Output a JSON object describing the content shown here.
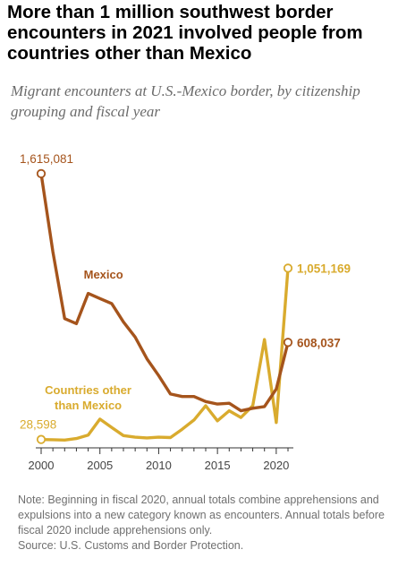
{
  "title": "More than 1 million southwest border encounters in 2021 involved people from countries other than Mexico",
  "subtitle": "Migrant encounters at U.S.-Mexico border, by citizenship grouping and fiscal year",
  "note": "Note: Beginning in fiscal 2020, annual totals combine apprehensions and expulsions into a new category known as encounters. Annual totals before fiscal 2020 include apprehensions only.",
  "source": "Source: U.S. Customs and Border Protection.",
  "colors": {
    "mexico": "#a5541c",
    "other": "#d9ab2e",
    "axis": "#333333",
    "tick_label": "#444444"
  },
  "chart_data": {
    "type": "line",
    "x": [
      2000,
      2001,
      2002,
      2003,
      2004,
      2005,
      2006,
      2007,
      2008,
      2009,
      2010,
      2011,
      2012,
      2013,
      2014,
      2015,
      2016,
      2017,
      2018,
      2019,
      2020,
      2021
    ],
    "xticks": [
      2000,
      2005,
      2010,
      2015,
      2020
    ],
    "xlim": [
      2000,
      2021
    ],
    "ylim": [
      0,
      1700000
    ],
    "series": [
      {
        "name": "Mexico",
        "label": "Mexico",
        "color": "#a5541c",
        "values": [
          1615081,
          1150000,
          750000,
          720000,
          900000,
          870000,
          840000,
          730000,
          640000,
          510000,
          410000,
          300000,
          285000,
          285000,
          255000,
          240000,
          245000,
          200000,
          215000,
          225000,
          330000,
          608037
        ]
      },
      {
        "name": "Countries other than Mexico",
        "label": "Countries other\nthan Mexico",
        "color": "#d9ab2e",
        "values": [
          28598,
          27000,
          25000,
          34000,
          55000,
          150000,
          100000,
          52000,
          42000,
          38000,
          42000,
          40000,
          90000,
          145000,
          230000,
          140000,
          200000,
          160000,
          230000,
          625000,
          130000,
          1051169
        ]
      }
    ],
    "annotations": [
      {
        "series": 0,
        "year": 2000,
        "text": "1,615,081"
      },
      {
        "series": 0,
        "year": 2021,
        "text": "608,037"
      },
      {
        "series": 1,
        "year": 2000,
        "text": "28,598"
      },
      {
        "series": 1,
        "year": 2021,
        "text": "1,051,169"
      }
    ]
  }
}
